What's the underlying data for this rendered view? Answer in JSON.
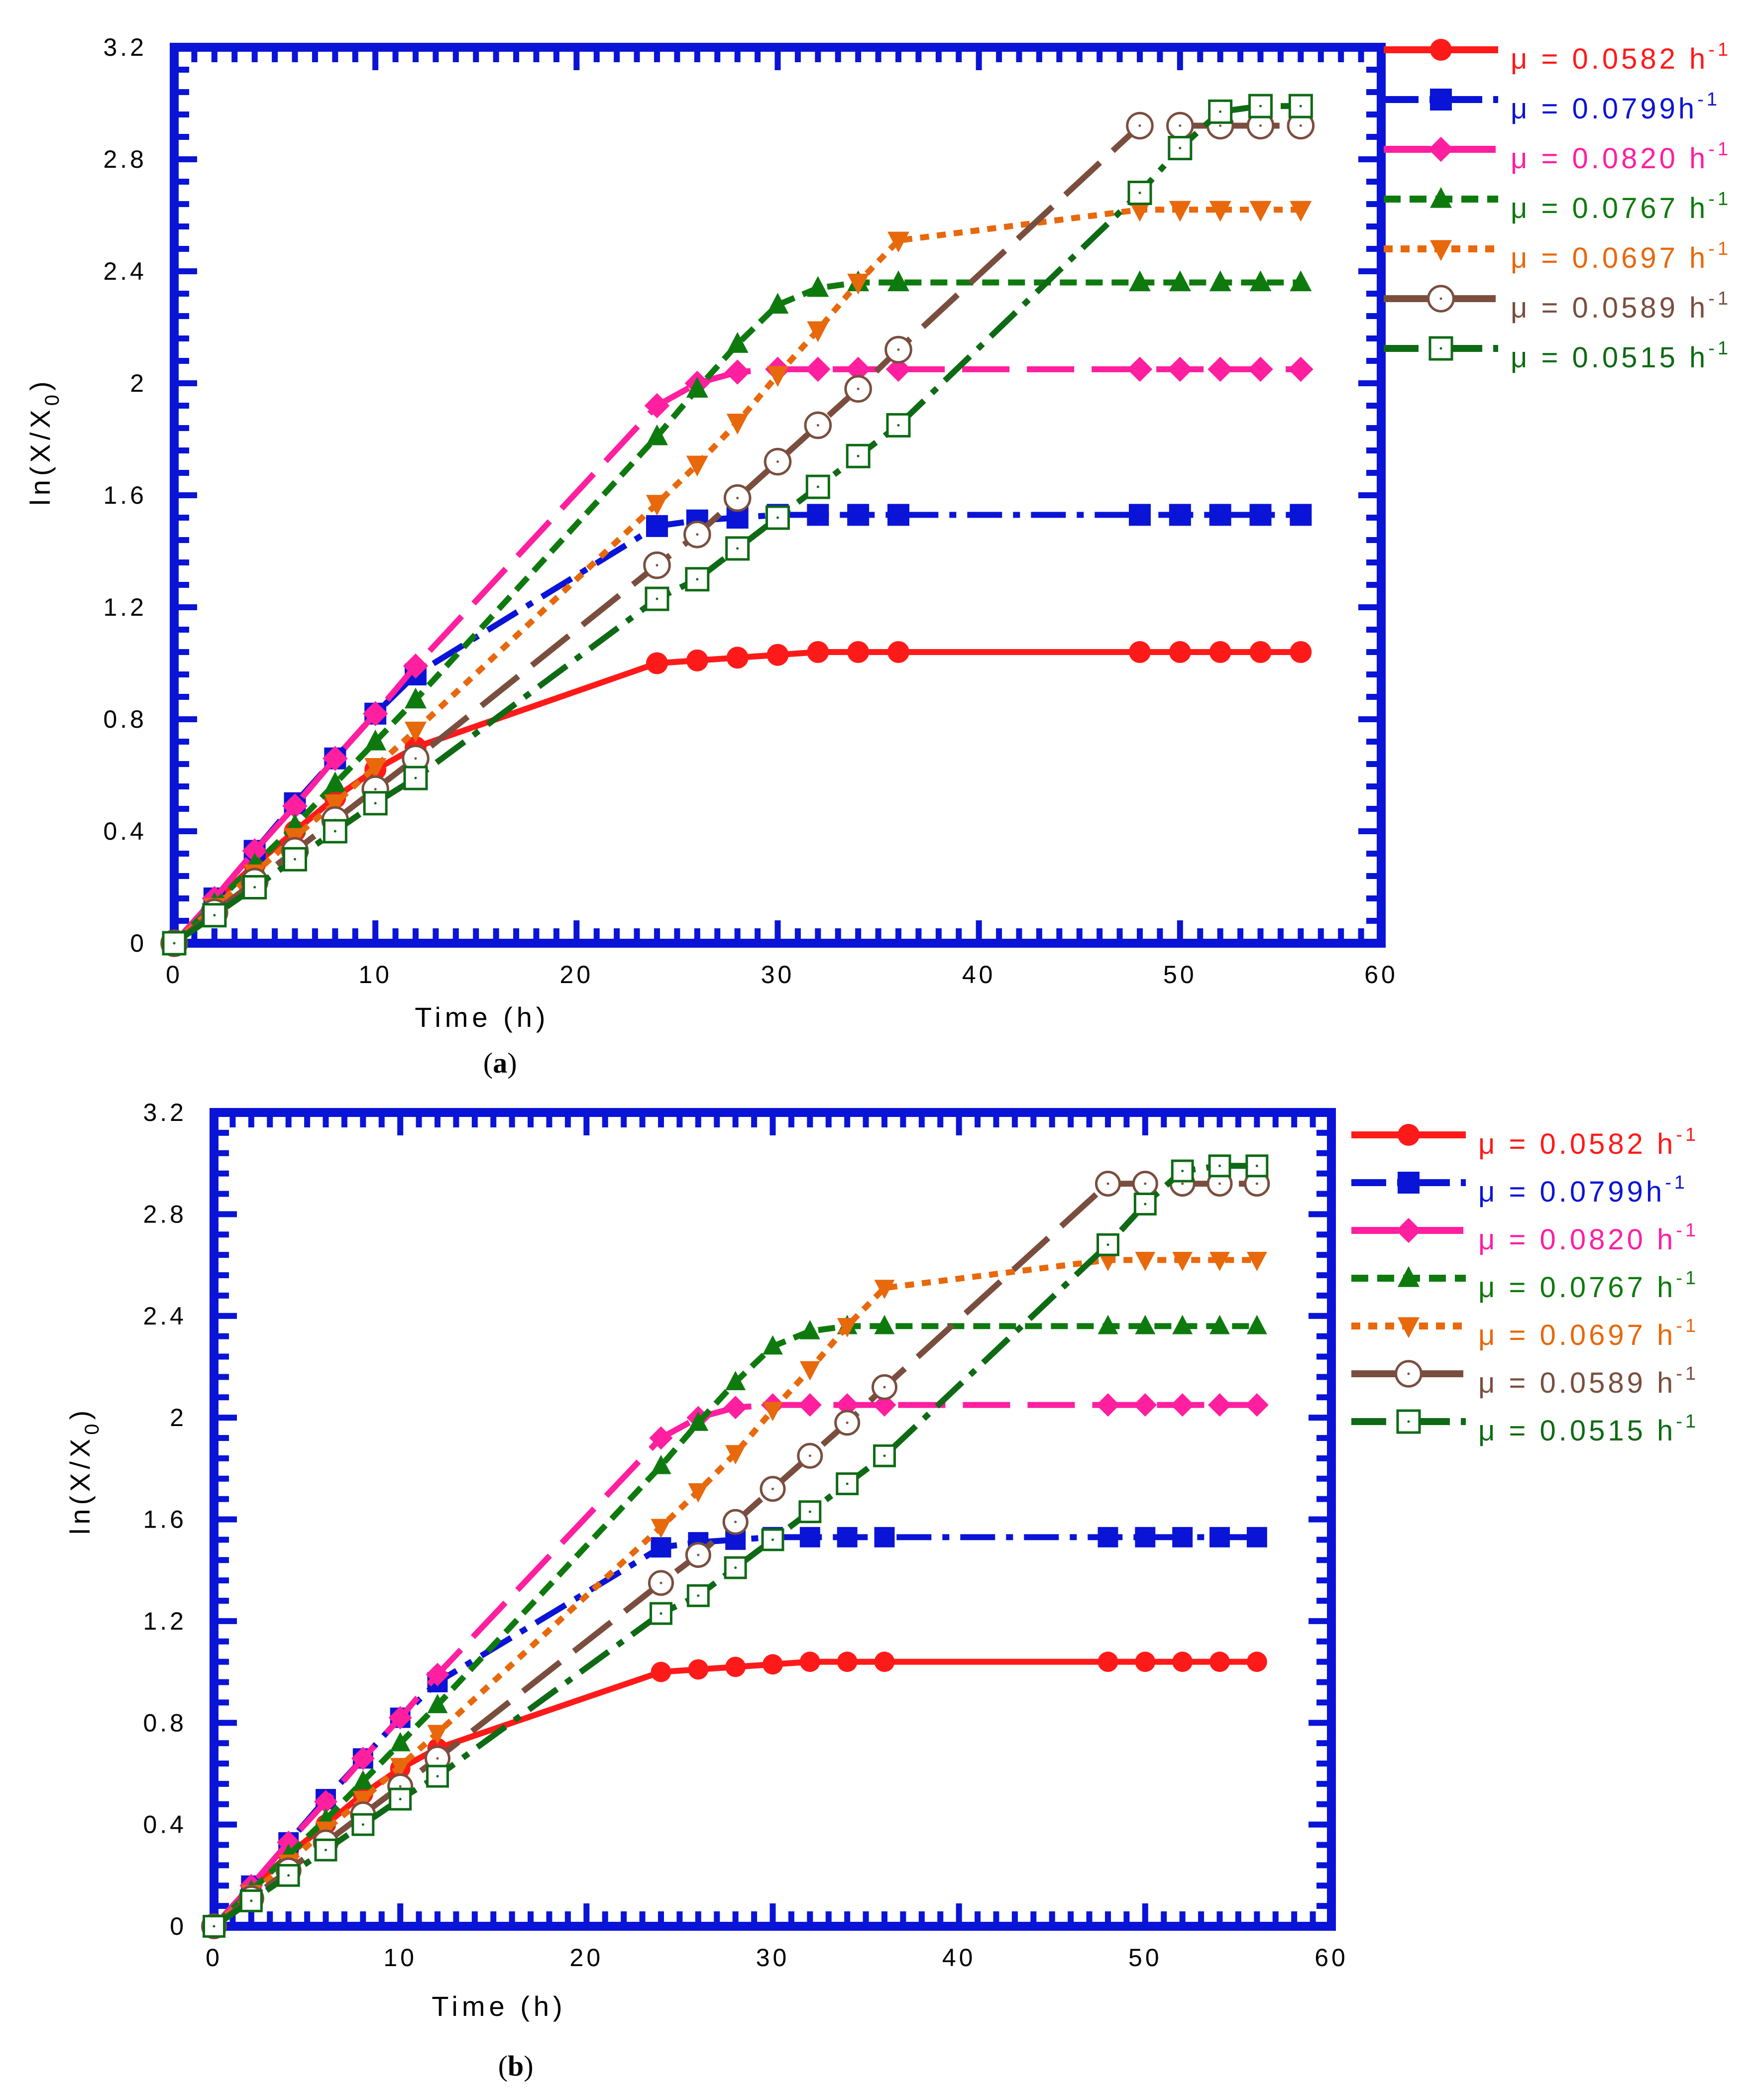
{
  "chart_data": [
    {
      "panel": "a",
      "type": "line",
      "caption_open": "(",
      "caption_letter": "a",
      "caption_close": ")",
      "xlabel": "Time (h)",
      "ylabel_main": "ln(X/X",
      "ylabel_sub": "0",
      "ylabel_close": ")",
      "xlim": [
        0,
        60
      ],
      "ylim": [
        0,
        3.2
      ],
      "xticks": [
        "0",
        "10",
        "20",
        "30",
        "40",
        "50",
        "60"
      ],
      "yticks": [
        "0",
        "0.4",
        "0.8",
        "1.2",
        "1.6",
        "2",
        "2.4",
        "2.8",
        "3.2"
      ],
      "legend_position": "outside-right",
      "series": [
        {
          "name": "μ = 0.0582 h",
          "sup": "-1",
          "color": "#ff1a1a",
          "marker": "circle",
          "dash": "solid",
          "x": [
            0,
            2,
            4,
            6,
            8,
            10,
            12,
            24,
            26,
            28,
            30,
            32,
            34,
            36,
            48,
            50,
            52,
            54,
            56
          ],
          "y": [
            0,
            0.15,
            0.28,
            0.4,
            0.52,
            0.62,
            0.7,
            1.0,
            1.01,
            1.02,
            1.03,
            1.04,
            1.04,
            1.04,
            1.04,
            1.04,
            1.04,
            1.04,
            1.04
          ]
        },
        {
          "name": "μ = 0.0799h",
          "sup": "-1",
          "color": "#0a14d6",
          "marker": "square",
          "dash": "dashdot",
          "x": [
            0,
            2,
            4,
            6,
            8,
            10,
            12,
            24,
            26,
            28,
            30,
            32,
            34,
            36,
            48,
            50,
            52,
            54,
            56
          ],
          "y": [
            0,
            0.16,
            0.33,
            0.5,
            0.66,
            0.82,
            0.96,
            1.49,
            1.51,
            1.52,
            1.53,
            1.53,
            1.53,
            1.53,
            1.53,
            1.53,
            1.53,
            1.53,
            1.53
          ]
        },
        {
          "name": "μ = 0.0820 h",
          "sup": "-1",
          "color": "#ff1f9f",
          "marker": "diamond",
          "dash": "longdash",
          "x": [
            0,
            2,
            4,
            6,
            8,
            10,
            12,
            24,
            26,
            28,
            30,
            32,
            34,
            36,
            48,
            50,
            52,
            54,
            56
          ],
          "y": [
            0,
            0.16,
            0.33,
            0.49,
            0.66,
            0.82,
            0.99,
            1.92,
            2.0,
            2.04,
            2.05,
            2.05,
            2.05,
            2.05,
            2.05,
            2.05,
            2.05,
            2.05,
            2.05
          ]
        },
        {
          "name": "μ = 0.0767 h",
          "sup": "-1",
          "color": "#0e7a0e",
          "marker": "triangle-up",
          "dash": "dash",
          "x": [
            0,
            2,
            4,
            6,
            8,
            10,
            12,
            24,
            26,
            28,
            30,
            32,
            34,
            36,
            48,
            50,
            52,
            54,
            56
          ],
          "y": [
            0,
            0.14,
            0.28,
            0.42,
            0.57,
            0.72,
            0.87,
            1.81,
            1.98,
            2.14,
            2.28,
            2.34,
            2.36,
            2.36,
            2.36,
            2.36,
            2.36,
            2.36,
            2.36
          ]
        },
        {
          "name": "μ = 0.0697 h",
          "sup": "-1",
          "color": "#e8680c",
          "marker": "triangle-down",
          "dash": "dot",
          "x": [
            0,
            2,
            4,
            6,
            8,
            10,
            12,
            24,
            26,
            28,
            30,
            32,
            34,
            36,
            48,
            50,
            52,
            54,
            56
          ],
          "y": [
            0,
            0.13,
            0.25,
            0.38,
            0.5,
            0.63,
            0.76,
            1.57,
            1.71,
            1.86,
            2.03,
            2.19,
            2.36,
            2.51,
            2.62,
            2.62,
            2.62,
            2.62,
            2.62
          ]
        },
        {
          "name": "μ = 0.0589 h",
          "sup": "-1",
          "color": "#7a4e3e",
          "marker": "circle-open",
          "dash": "longdash",
          "x": [
            0,
            2,
            4,
            6,
            8,
            10,
            12,
            24,
            26,
            28,
            30,
            32,
            34,
            36,
            48,
            50,
            52,
            54,
            56
          ],
          "y": [
            0,
            0.11,
            0.22,
            0.33,
            0.44,
            0.55,
            0.66,
            1.35,
            1.46,
            1.59,
            1.72,
            1.85,
            1.98,
            2.12,
            2.92,
            2.92,
            2.92,
            2.92,
            2.92
          ]
        },
        {
          "name": "μ = 0.0515 h",
          "sup": "-1",
          "color": "#0e6a14",
          "marker": "square-open",
          "dash": "dashdot",
          "x": [
            0,
            2,
            4,
            6,
            8,
            10,
            12,
            24,
            26,
            28,
            30,
            32,
            34,
            36,
            48,
            50,
            52,
            54,
            56
          ],
          "y": [
            0,
            0.1,
            0.2,
            0.3,
            0.4,
            0.5,
            0.59,
            1.23,
            1.3,
            1.41,
            1.52,
            1.63,
            1.74,
            1.85,
            2.68,
            2.84,
            2.97,
            2.99,
            2.99
          ]
        }
      ]
    },
    {
      "panel": "b",
      "type": "line",
      "caption_open": "(",
      "caption_letter": "b",
      "caption_close": ")",
      "xlabel": "Time (h)",
      "ylabel_main": "ln(X/X",
      "ylabel_sub": "0",
      "ylabel_close": ")",
      "xlim": [
        0,
        60
      ],
      "ylim": [
        0,
        3.2
      ],
      "xticks": [
        "0",
        "10",
        "20",
        "30",
        "40",
        "50",
        "60"
      ],
      "yticks": [
        "0",
        "0.4",
        "0.8",
        "1.2",
        "1.6",
        "2",
        "2.4",
        "2.8",
        "3.2"
      ],
      "legend_position": "outside-right",
      "series": [
        {
          "name": "μ = 0.0582 h",
          "sup": "-1",
          "color": "#ff1a1a",
          "marker": "circle",
          "dash": "solid",
          "x": [
            0,
            2,
            4,
            6,
            8,
            10,
            12,
            24,
            26,
            28,
            30,
            32,
            34,
            36,
            48,
            50,
            52,
            54,
            56
          ],
          "y": [
            0,
            0.15,
            0.28,
            0.4,
            0.52,
            0.62,
            0.7,
            1.0,
            1.01,
            1.02,
            1.03,
            1.04,
            1.04,
            1.04,
            1.04,
            1.04,
            1.04,
            1.04,
            1.04
          ]
        },
        {
          "name": "μ = 0.0799h",
          "sup": "-1",
          "color": "#0a14d6",
          "marker": "square",
          "dash": "dashdot",
          "x": [
            0,
            2,
            4,
            6,
            8,
            10,
            12,
            24,
            26,
            28,
            30,
            32,
            34,
            36,
            48,
            50,
            52,
            54,
            56
          ],
          "y": [
            0,
            0.16,
            0.33,
            0.5,
            0.66,
            0.82,
            0.96,
            1.49,
            1.51,
            1.52,
            1.53,
            1.53,
            1.53,
            1.53,
            1.53,
            1.53,
            1.53,
            1.53,
            1.53
          ]
        },
        {
          "name": "μ = 0.0820 h",
          "sup": "-1",
          "color": "#ff1f9f",
          "marker": "diamond",
          "dash": "longdash",
          "x": [
            0,
            2,
            4,
            6,
            8,
            10,
            12,
            24,
            26,
            28,
            30,
            32,
            34,
            36,
            48,
            50,
            52,
            54,
            56
          ],
          "y": [
            0,
            0.16,
            0.33,
            0.49,
            0.66,
            0.82,
            0.99,
            1.92,
            2.0,
            2.04,
            2.05,
            2.05,
            2.05,
            2.05,
            2.05,
            2.05,
            2.05,
            2.05,
            2.05
          ]
        },
        {
          "name": "μ = 0.0767 h",
          "sup": "-1",
          "color": "#0e7a0e",
          "marker": "triangle-up",
          "dash": "dash",
          "x": [
            0,
            2,
            4,
            6,
            8,
            10,
            12,
            24,
            26,
            28,
            30,
            32,
            34,
            36,
            48,
            50,
            52,
            54,
            56
          ],
          "y": [
            0,
            0.14,
            0.28,
            0.42,
            0.57,
            0.72,
            0.87,
            1.81,
            1.98,
            2.14,
            2.28,
            2.34,
            2.36,
            2.36,
            2.36,
            2.36,
            2.36,
            2.36,
            2.36
          ]
        },
        {
          "name": "μ = 0.0697 h",
          "sup": "-1",
          "color": "#e8680c",
          "marker": "triangle-down",
          "dash": "dot",
          "x": [
            0,
            2,
            4,
            6,
            8,
            10,
            12,
            24,
            26,
            28,
            30,
            32,
            34,
            36,
            48,
            50,
            52,
            54,
            56
          ],
          "y": [
            0,
            0.13,
            0.25,
            0.38,
            0.5,
            0.63,
            0.76,
            1.57,
            1.71,
            1.86,
            2.03,
            2.19,
            2.36,
            2.51,
            2.62,
            2.62,
            2.62,
            2.62,
            2.62
          ]
        },
        {
          "name": "μ = 0.0589 h",
          "sup": "-1",
          "color": "#7a4e3e",
          "marker": "circle-open",
          "dash": "longdash",
          "x": [
            0,
            2,
            4,
            6,
            8,
            10,
            12,
            24,
            26,
            28,
            30,
            32,
            34,
            36,
            48,
            50,
            52,
            54,
            56
          ],
          "y": [
            0,
            0.11,
            0.22,
            0.33,
            0.44,
            0.55,
            0.66,
            1.35,
            1.46,
            1.59,
            1.72,
            1.85,
            1.98,
            2.12,
            2.92,
            2.92,
            2.92,
            2.92,
            2.92
          ]
        },
        {
          "name": "μ = 0.0515 h",
          "sup": "-1",
          "color": "#0e6a14",
          "marker": "square-open",
          "dash": "dashdot",
          "x": [
            0,
            2,
            4,
            6,
            8,
            10,
            12,
            24,
            26,
            28,
            30,
            32,
            34,
            36,
            48,
            50,
            52,
            54,
            56
          ],
          "y": [
            0,
            0.1,
            0.2,
            0.3,
            0.4,
            0.5,
            0.59,
            1.23,
            1.3,
            1.41,
            1.52,
            1.63,
            1.74,
            1.85,
            2.68,
            2.84,
            2.97,
            2.99,
            2.99
          ]
        }
      ]
    }
  ],
  "style": {
    "frame_color": "#0a14d6"
  }
}
